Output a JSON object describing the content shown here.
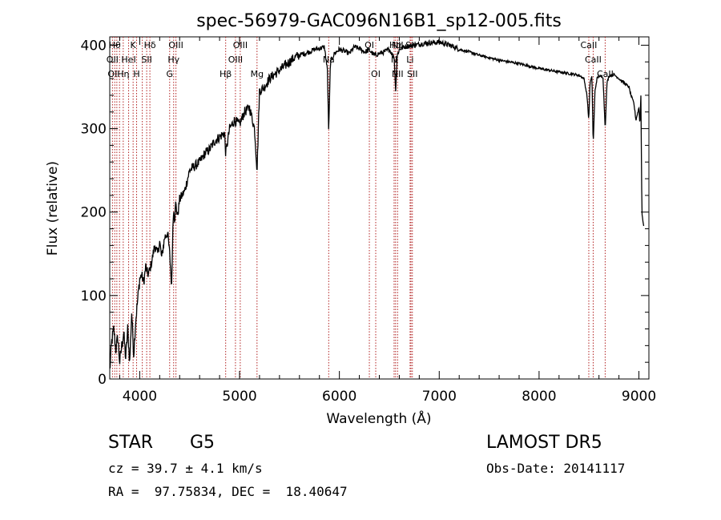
{
  "chart_data": {
    "type": "line",
    "title": "spec-56979-GAC096N16B1_sp12-005.fits",
    "xlabel": "Wavelength (Å)",
    "ylabel": "Flux (relative)",
    "xlim": [
      3700,
      9100
    ],
    "ylim": [
      0,
      410
    ],
    "xticks": [
      4000,
      5000,
      6000,
      7000,
      8000,
      9000
    ],
    "yticks": [
      0,
      100,
      200,
      300,
      400
    ],
    "grid": false,
    "series": [
      {
        "x": [
          3700,
          3720,
          3740,
          3760,
          3780,
          3800,
          3820,
          3840,
          3860,
          3880,
          3900,
          3920,
          3940,
          3960,
          3980,
          4000,
          4020,
          4040,
          4060,
          4080,
          4100,
          4120,
          4150,
          4180,
          4200,
          4220,
          4250,
          4280,
          4300,
          4320,
          4330,
          4340,
          4350,
          4360,
          4380,
          4400,
          4450,
          4500,
          4550,
          4600,
          4650,
          4700,
          4750,
          4800,
          4850,
          4861,
          4900,
          4950,
          5000,
          5050,
          5100,
          5150,
          5175,
          5200,
          5250,
          5300,
          5350,
          5400,
          5450,
          5500,
          5550,
          5600,
          5650,
          5700,
          5750,
          5800,
          5850,
          5880,
          5893,
          5910,
          5950,
          6000,
          6050,
          6100,
          6150,
          6200,
          6250,
          6300,
          6350,
          6400,
          6450,
          6500,
          6550,
          6563,
          6580,
          6600,
          6650,
          6700,
          6750,
          6800,
          6850,
          6900,
          6950,
          7000,
          7050,
          7100,
          7150,
          7200,
          7300,
          7400,
          7500,
          7600,
          7700,
          7800,
          7900,
          8000,
          8100,
          8200,
          8300,
          8400,
          8450,
          8480,
          8498,
          8510,
          8530,
          8542,
          8560,
          8580,
          8600,
          8640,
          8662,
          8680,
          8700,
          8750,
          8800,
          8850,
          8900,
          8920,
          8950,
          8970,
          8990,
          9000,
          9010,
          9020,
          9030,
          9050
        ],
        "y": [
          10,
          45,
          60,
          35,
          50,
          20,
          40,
          55,
          25,
          60,
          20,
          80,
          30,
          70,
          95,
          120,
          125,
          115,
          135,
          125,
          130,
          140,
          160,
          150,
          165,
          145,
          170,
          175,
          150,
          110,
          175,
          205,
          190,
          210,
          195,
          215,
          225,
          250,
          255,
          260,
          270,
          275,
          285,
          290,
          295,
          270,
          300,
          310,
          305,
          320,
          325,
          300,
          250,
          345,
          350,
          360,
          365,
          370,
          375,
          380,
          385,
          388,
          390,
          392,
          395,
          396,
          398,
          370,
          295,
          380,
          390,
          395,
          393,
          390,
          398,
          396,
          392,
          394,
          388,
          390,
          392,
          395,
          385,
          345,
          388,
          395,
          398,
          399,
          400,
          401,
          402,
          403,
          403,
          404,
          402,
          400,
          398,
          395,
          392,
          388,
          385,
          382,
          380,
          378,
          375,
          372,
          370,
          368,
          366,
          364,
          360,
          340,
          310,
          355,
          362,
          280,
          345,
          360,
          363,
          362,
          300,
          355,
          363,
          365,
          360,
          355,
          350,
          340,
          330,
          310,
          320,
          325,
          305,
          340,
          200,
          180
        ]
      }
    ],
    "lines": {
      "lines_ang": [
        3727,
        3750,
        3771,
        3798,
        3835,
        3889,
        3934,
        3969,
        4026,
        4070,
        4102,
        4300,
        4340,
        4363,
        4861,
        4959,
        5007,
        5175,
        5893,
        6300,
        6364,
        6548,
        6563,
        6583,
        6708,
        6717,
        6731,
        8498,
        8542,
        8662
      ],
      "labels": [
        {
          "text": "Hθ",
          "x": 3750,
          "row": 0
        },
        {
          "text": "K",
          "x": 3934,
          "row": 0
        },
        {
          "text": "Hδ",
          "x": 4102,
          "row": 0
        },
        {
          "text": "OIII",
          "x": 4363,
          "row": 0
        },
        {
          "text": "OIII",
          "x": 5007,
          "row": 0
        },
        {
          "text": "OI",
          "x": 6300,
          "row": 0
        },
        {
          "text": "Hα",
          "x": 6563,
          "row": 0
        },
        {
          "text": "NII",
          "x": 6583,
          "row": 0
        },
        {
          "text": "SII",
          "x": 6717,
          "row": 0
        },
        {
          "text": "CaII",
          "x": 8498,
          "row": 0
        },
        {
          "text": "OII",
          "x": 3727,
          "row": 1
        },
        {
          "text": "HeI",
          "x": 3889,
          "row": 1
        },
        {
          "text": "SII",
          "x": 4070,
          "row": 1
        },
        {
          "text": "Hγ",
          "x": 4340,
          "row": 1
        },
        {
          "text": "OIII",
          "x": 4959,
          "row": 1
        },
        {
          "text": "Na",
          "x": 5893,
          "row": 1
        },
        {
          "text": "N",
          "x": 6548,
          "row": 1
        },
        {
          "text": "Li",
          "x": 6708,
          "row": 1
        },
        {
          "text": "CaII",
          "x": 8542,
          "row": 1
        },
        {
          "text": "OI",
          "x": 3727,
          "row": 2
        },
        {
          "text": "Hη",
          "x": 3835,
          "row": 2
        },
        {
          "text": "H",
          "x": 3969,
          "row": 2
        },
        {
          "text": "G",
          "x": 4300,
          "row": 2
        },
        {
          "text": "Hβ",
          "x": 4861,
          "row": 2
        },
        {
          "text": "Mg",
          "x": 5175,
          "row": 2
        },
        {
          "text": "OI",
          "x": 6364,
          "row": 2
        },
        {
          "text": "NII",
          "x": 6583,
          "row": 2
        },
        {
          "text": "SII",
          "x": 6731,
          "row": 2
        },
        {
          "text": "CaII",
          "x": 8662,
          "row": 2
        }
      ]
    }
  },
  "info": {
    "class_label": "STAR",
    "subclass": "G5",
    "survey": "LAMOST DR5",
    "redshift": "cz = 39.7 ± 4.1 km/s",
    "obs_date": "Obs-Date: 20141117",
    "coords": "RA =  97.75834, DEC =  18.40647"
  },
  "colors": {
    "line_marker": "#b22222",
    "spectrum": "#000000"
  }
}
